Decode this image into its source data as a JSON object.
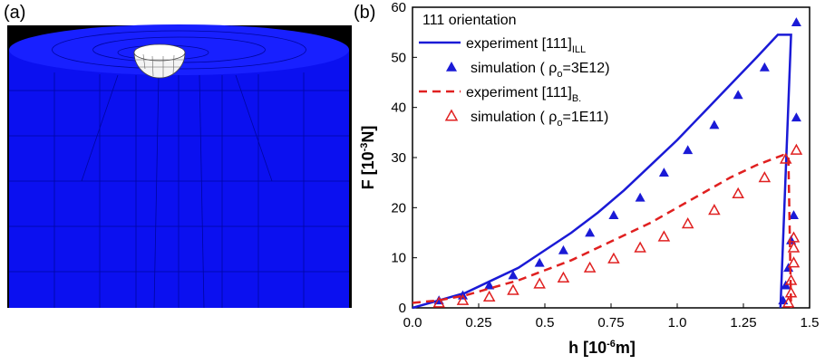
{
  "panels": [
    "(a)",
    "(b)"
  ],
  "chart_data": {
    "type": "line",
    "legend_title": "111 orientation",
    "xlabel": "h [10",
    "xlabel_sup": "-6",
    "xlabel_suffix": "m]",
    "ylabel": "F [10",
    "ylabel_sup": "-3",
    "ylabel_suffix": "N]",
    "xlim": [
      0,
      1.5
    ],
    "xticks": [
      {
        "value": 0,
        "label": "0.0"
      },
      0.25,
      0.5,
      0.75,
      {
        "value": 1,
        "label": "1.0"
      },
      1.25,
      1.5
    ],
    "ylim": [
      0,
      60
    ],
    "yticks": [
      0,
      10,
      20,
      30,
      40,
      50,
      60
    ],
    "legend": "upper left",
    "series": [
      {
        "name": "experiment [111]",
        "name_sub": "ILL",
        "color": "#1a1ad6",
        "style": "solid",
        "x": [
          0,
          0.1,
          0.2,
          0.3,
          0.4,
          0.5,
          0.6,
          0.7,
          0.8,
          0.9,
          1.0,
          1.1,
          1.2,
          1.3,
          1.38,
          1.43,
          1.39
        ],
        "values": [
          0,
          1.5,
          3,
          5.5,
          8,
          11.5,
          15,
          19,
          23.5,
          28.5,
          33.5,
          39,
          44.5,
          50,
          54.5,
          54.5,
          0
        ]
      },
      {
        "name": "simulation ( ρ",
        "name_sub": "o",
        "name_suffix": "=3E12)",
        "color": "#1a1ad6",
        "style": "triangle",
        "x": [
          0.1,
          0.19,
          0.29,
          0.38,
          0.48,
          0.57,
          0.67,
          0.76,
          0.86,
          0.95,
          1.04,
          1.14,
          1.23,
          1.33,
          1.45,
          1.45,
          1.44,
          1.43,
          1.42,
          1.41,
          1.4
        ],
        "values": [
          1.5,
          2.5,
          4.5,
          6.5,
          9,
          11.5,
          15,
          18.5,
          22,
          27,
          31.5,
          36.5,
          42.5,
          48,
          57,
          38,
          18.5,
          13.5,
          8,
          4.5,
          1.5
        ]
      },
      {
        "name": "experiment [111]",
        "name_sub": "B.",
        "color": "#e02020",
        "style": "dashed",
        "x": [
          0,
          0.1,
          0.2,
          0.3,
          0.4,
          0.5,
          0.6,
          0.7,
          0.8,
          0.9,
          1.0,
          1.1,
          1.2,
          1.3,
          1.4,
          1.42,
          1.43
        ],
        "values": [
          1,
          1.5,
          2.5,
          4,
          5.5,
          7.5,
          9.5,
          12,
          14.5,
          17,
          20,
          23,
          26,
          28.5,
          30.5,
          30,
          0
        ]
      },
      {
        "name": "simulation ( ρ",
        "name_sub": "o",
        "name_suffix": "=1E11)",
        "color": "#e02020",
        "style": "triangle-open",
        "x": [
          0.1,
          0.19,
          0.29,
          0.38,
          0.48,
          0.57,
          0.67,
          0.76,
          0.86,
          0.95,
          1.04,
          1.14,
          1.23,
          1.33,
          1.41,
          1.45,
          1.44,
          1.44,
          1.44,
          1.43,
          1.43,
          1.42
        ],
        "values": [
          1,
          1.5,
          2.2,
          3.5,
          4.8,
          6,
          8,
          9.8,
          12,
          14.2,
          16.8,
          19.5,
          22.8,
          26,
          29.7,
          31.5,
          14,
          12,
          9,
          5.5,
          3,
          1
        ]
      }
    ]
  }
}
